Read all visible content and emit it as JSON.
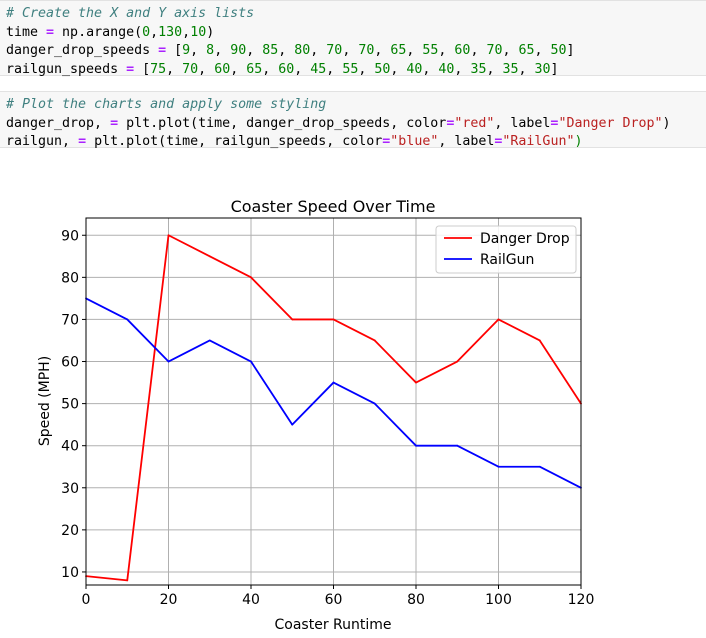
{
  "code_cells": [
    {
      "lines": [
        [
          {
            "t": "# Create the X and Y axis lists",
            "c": "comment"
          }
        ],
        [
          {
            "t": "time "
          },
          {
            "t": "=",
            "c": "op"
          },
          {
            "t": " np.arange("
          },
          {
            "t": "0",
            "c": "num"
          },
          {
            "t": ","
          },
          {
            "t": "130",
            "c": "num"
          },
          {
            "t": ","
          },
          {
            "t": "10",
            "c": "num"
          },
          {
            "t": ")"
          }
        ],
        [
          {
            "t": "danger_drop_speeds "
          },
          {
            "t": "=",
            "c": "op"
          },
          {
            "t": " ["
          },
          {
            "t": "9",
            "c": "num"
          },
          {
            "t": ", "
          },
          {
            "t": "8",
            "c": "num"
          },
          {
            "t": ", "
          },
          {
            "t": "90",
            "c": "num"
          },
          {
            "t": ", "
          },
          {
            "t": "85",
            "c": "num"
          },
          {
            "t": ", "
          },
          {
            "t": "80",
            "c": "num"
          },
          {
            "t": ", "
          },
          {
            "t": "70",
            "c": "num"
          },
          {
            "t": ", "
          },
          {
            "t": "70",
            "c": "num"
          },
          {
            "t": ", "
          },
          {
            "t": "65",
            "c": "num"
          },
          {
            "t": ", "
          },
          {
            "t": "55",
            "c": "num"
          },
          {
            "t": ", "
          },
          {
            "t": "60",
            "c": "num"
          },
          {
            "t": ", "
          },
          {
            "t": "70",
            "c": "num"
          },
          {
            "t": ", "
          },
          {
            "t": "65",
            "c": "num"
          },
          {
            "t": ", "
          },
          {
            "t": "50",
            "c": "num"
          },
          {
            "t": "]"
          }
        ],
        [
          {
            "t": "railgun_speeds "
          },
          {
            "t": "=",
            "c": "op"
          },
          {
            "t": " ["
          },
          {
            "t": "75",
            "c": "num"
          },
          {
            "t": ", "
          },
          {
            "t": "70",
            "c": "num"
          },
          {
            "t": ", "
          },
          {
            "t": "60",
            "c": "num"
          },
          {
            "t": ", "
          },
          {
            "t": "65",
            "c": "num"
          },
          {
            "t": ", "
          },
          {
            "t": "60",
            "c": "num"
          },
          {
            "t": ", "
          },
          {
            "t": "45",
            "c": "num"
          },
          {
            "t": ", "
          },
          {
            "t": "55",
            "c": "num"
          },
          {
            "t": ", "
          },
          {
            "t": "50",
            "c": "num"
          },
          {
            "t": ", "
          },
          {
            "t": "40",
            "c": "num"
          },
          {
            "t": ", "
          },
          {
            "t": "40",
            "c": "num"
          },
          {
            "t": ", "
          },
          {
            "t": "35",
            "c": "num"
          },
          {
            "t": ", "
          },
          {
            "t": "35",
            "c": "num"
          },
          {
            "t": ", "
          },
          {
            "t": "30",
            "c": "num"
          },
          {
            "t": "]"
          }
        ]
      ]
    },
    {
      "lines": [
        [
          {
            "t": "# Plot the charts and apply some styling",
            "c": "comment"
          }
        ],
        [
          {
            "t": "danger_drop, "
          },
          {
            "t": "=",
            "c": "op"
          },
          {
            "t": " plt.plot(time, danger_drop_speeds, color"
          },
          {
            "t": "=",
            "c": "op"
          },
          {
            "t": "\"red\"",
            "c": "str"
          },
          {
            "t": ", label"
          },
          {
            "t": "=",
            "c": "op"
          },
          {
            "t": "\"Danger Drop\"",
            "c": "str"
          },
          {
            "t": ")"
          }
        ],
        [
          {
            "t": "railgun, "
          },
          {
            "t": "=",
            "c": "op"
          },
          {
            "t": " plt.plot(time, railgun_speeds, color"
          },
          {
            "t": "=",
            "c": "op"
          },
          {
            "t": "\"blue\"",
            "c": "str"
          },
          {
            "t": ", label"
          },
          {
            "t": "=",
            "c": "op"
          },
          {
            "t": "\"RailGun\"",
            "c": "str"
          },
          {
            "t": ")",
            "c": "paren"
          }
        ]
      ]
    }
  ],
  "chart_data": {
    "type": "line",
    "title": "Coaster Speed Over Time",
    "xlabel": "Coaster Runtime",
    "ylabel": "Speed (MPH)",
    "x": [
      0,
      10,
      20,
      30,
      40,
      50,
      60,
      70,
      80,
      90,
      100,
      110,
      120
    ],
    "xlim": [
      0,
      120
    ],
    "ylim": [
      6.9,
      94.1
    ],
    "xticks": [
      0,
      20,
      40,
      60,
      80,
      100,
      120
    ],
    "yticks": [
      10,
      20,
      30,
      40,
      50,
      60,
      70,
      80,
      90
    ],
    "grid": true,
    "legend": "top-right",
    "series": [
      {
        "name": "Danger Drop",
        "color": "#ff0000",
        "values": [
          9,
          8,
          90,
          85,
          80,
          70,
          70,
          65,
          55,
          60,
          70,
          65,
          50
        ]
      },
      {
        "name": "RailGun",
        "color": "#0000ff",
        "values": [
          75,
          70,
          60,
          65,
          60,
          45,
          55,
          50,
          40,
          40,
          35,
          35,
          30
        ]
      }
    ]
  }
}
